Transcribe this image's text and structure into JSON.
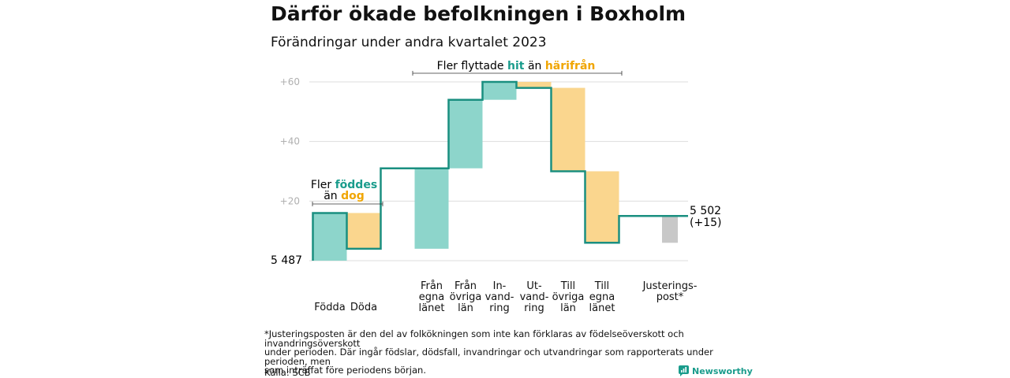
{
  "title": "Därför ökade befolkningen i Boxholm",
  "subtitle": "Förändringar under andra kvartalet 2023",
  "footnote": "*Justeringsposten är den del av folkökningen som inte kan förklaras av födelseöverskott och invandringsöverskott\nunder perioden. Där ingår födslar, dödsfall, invandringar och utvandringar som rapporterats under perioden, men\nsom inträffat före periodens början.",
  "source": "Källa: SCB",
  "brand": "Newsworthy",
  "colors": {
    "line": "#1a8f80",
    "increase": "#8dd5cb",
    "decrease": "#fad68e",
    "adjustment": "#c8c8c8",
    "hit_text": "#1a9c8c",
    "harifran_text": "#f0a500",
    "grid": "#dddddd",
    "tick": "#b0b0b0"
  },
  "annotations": {
    "birth": {
      "line1_prefix": "Fler",
      "line1_highlight": "föddes",
      "line2_prefix": "än",
      "line2_highlight": "dog"
    },
    "migration": {
      "prefix": "Fler flyttade",
      "hit": "hit",
      "middle": "än",
      "harifran": "härifrån"
    }
  },
  "chart_data": {
    "type": "waterfall",
    "start_value": 5487,
    "start_label": "5 487",
    "end_value": 5502,
    "end_label": "5 502",
    "end_change_label": "(+15)",
    "y_axis": {
      "min": 0,
      "max": 60,
      "ticks": [
        {
          "value": 20,
          "label": "+20"
        },
        {
          "value": 40,
          "label": "+40"
        },
        {
          "value": 60,
          "label": "+60"
        }
      ]
    },
    "steps": [
      {
        "label_lines": [
          "Födda"
        ],
        "change": 16,
        "kind": "increase"
      },
      {
        "label_lines": [
          "Döda"
        ],
        "change": -12,
        "kind": "decrease"
      },
      {
        "label_lines": [
          "Från",
          "egna",
          "länet"
        ],
        "change": 27,
        "kind": "increase"
      },
      {
        "label_lines": [
          "Från",
          "övriga",
          "län"
        ],
        "change": 23,
        "kind": "increase"
      },
      {
        "label_lines": [
          "In-",
          "vand-",
          "ring"
        ],
        "change": 6,
        "kind": "increase"
      },
      {
        "label_lines": [
          "Ut-",
          "vand-",
          "ring"
        ],
        "change": -2,
        "kind": "decrease"
      },
      {
        "label_lines": [
          "Till",
          "övriga",
          "län"
        ],
        "change": -28,
        "kind": "decrease"
      },
      {
        "label_lines": [
          "Till",
          "egna",
          "länet"
        ],
        "change": -24,
        "kind": "decrease"
      },
      {
        "label_lines": [
          "Justerings-",
          "post*"
        ],
        "change": 9,
        "kind": "adjustment"
      }
    ]
  }
}
